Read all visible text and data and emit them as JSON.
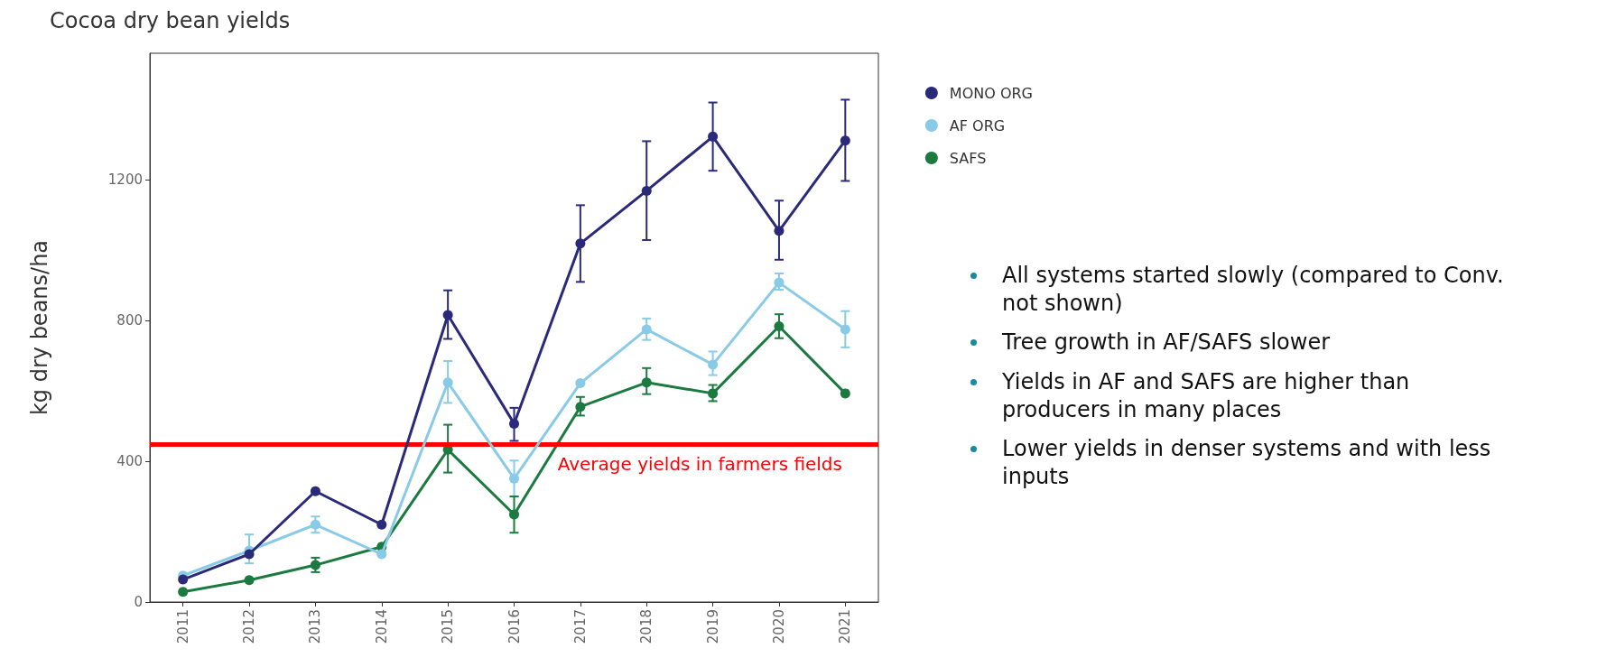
{
  "chart_data": {
    "type": "line",
    "title": "Cocoa dry bean yields",
    "ylabel": "kg dry beans/ha",
    "categories": [
      "2011",
      "2012",
      "2013",
      "2014",
      "2015",
      "2016",
      "2017",
      "2018",
      "2019",
      "2020",
      "2021"
    ],
    "series": [
      {
        "name": "MONO ORG",
        "color": "#2b2a7a",
        "values": [
          64,
          136,
          315,
          220,
          816,
          507,
          1019,
          1169,
          1323,
          1055,
          1312
        ],
        "errors": [
          null,
          null,
          null,
          null,
          [
            748,
            886
          ],
          [
            458,
            552
          ],
          [
            910,
            1128
          ],
          [
            1029,
            1310
          ],
          [
            1226,
            1420
          ],
          [
            973,
            1141
          ],
          [
            1197,
            1428
          ]
        ]
      },
      {
        "name": "AF ORG",
        "color": "#89cbe6",
        "values": [
          75,
          146,
          220,
          136,
          624,
          351,
          622,
          775,
          675,
          908,
          775
        ],
        "errors": [
          null,
          [
            110,
            192
          ],
          [
            197,
            243
          ],
          null,
          [
            566,
            685
          ],
          [
            300,
            402
          ],
          null,
          [
            745,
            806
          ],
          [
            645,
            712
          ],
          [
            888,
            934
          ],
          [
            724,
            827
          ]
        ]
      },
      {
        "name": "SAFS",
        "color": "#1a7a3f",
        "values": [
          29,
          62,
          105,
          157,
          433,
          249,
          555,
          624,
          593,
          784,
          593
        ],
        "errors": [
          null,
          null,
          [
            85,
            126
          ],
          null,
          [
            368,
            504
          ],
          [
            197,
            300
          ],
          [
            530,
            583
          ],
          [
            591,
            665
          ],
          [
            571,
            617
          ],
          [
            750,
            818
          ],
          null
        ]
      }
    ],
    "ylim": [
      0,
      1560
    ],
    "yticks": [
      0,
      400,
      800,
      1200
    ],
    "grid": false,
    "legend": "top right",
    "marker": "circle",
    "line_style": "solid",
    "ref_lines": [
      {
        "axis": "y",
        "value": 448,
        "label": "Average yields in farmers fields",
        "color": "#ff0000"
      }
    ],
    "annotations": [
      "All systems started slowly (compared to Conv. not shown)",
      "Tree growth in AF/SAFS slower",
      "Yields in AF and SAFS are higher than producers in many places",
      "Lower yields in denser systems and with less inputs"
    ]
  }
}
